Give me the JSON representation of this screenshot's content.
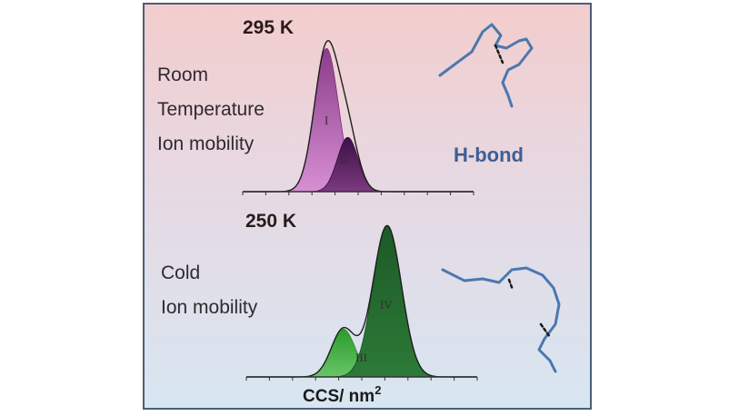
{
  "figure": {
    "panel_top_temperature": "295 K",
    "panel_top_description": [
      "Room",
      "Temperature",
      "Ion mobility"
    ],
    "panel_bottom_temperature": "250 K",
    "panel_bottom_description": [
      "Cold",
      "Ion mobility"
    ],
    "hbond_label": "H-bond",
    "x_axis_label": "CCS/ nm",
    "x_axis_label_superscript": "2",
    "colors": {
      "frame": "#4a5f78",
      "background_top": "#f2cfcf",
      "background_bottom": "#dbe7f1",
      "room_temp_peaks": [
        "#b063a8",
        "#5a1e62"
      ],
      "cold_peaks": [
        "#3aa03a",
        "#1f5d2a"
      ],
      "molecule": "#4a78b0",
      "hbond_text": "#3e5f93"
    }
  },
  "chart_data": [
    {
      "type": "area",
      "title": "295 K",
      "xlabel": "",
      "ylabel": "",
      "x_ticks": 10,
      "x": [
        0,
        0.02,
        0.04,
        0.06,
        0.08,
        0.1,
        0.12,
        0.14,
        0.16,
        0.18,
        0.2,
        0.22,
        0.24,
        0.26,
        0.28,
        0.3,
        0.32,
        0.34,
        0.36,
        0.38,
        0.4,
        0.42,
        0.44,
        0.46,
        0.48,
        0.5,
        0.52,
        0.54,
        0.56,
        0.58,
        0.6,
        0.62,
        0.64,
        0.66,
        0.68,
        0.7,
        0.72,
        0.74,
        0.76,
        0.78,
        0.8,
        0.82,
        0.84,
        0.86,
        0.88,
        0.9,
        0.92,
        0.94,
        0.96,
        0.98,
        1.0
      ],
      "series": [
        {
          "name": "I",
          "peak_x": 0.363,
          "width": 0.052,
          "height": 0.95
        },
        {
          "name": "II",
          "peak_x": 0.455,
          "width": 0.045,
          "height": 0.36
        },
        {
          "name": "",
          "role": "envelope"
        }
      ]
    },
    {
      "type": "area",
      "title": "250 K",
      "xlabel": "CCS/ nm2",
      "ylabel": "",
      "x_ticks": 10,
      "series": [
        {
          "name": "III",
          "peak_x": 0.42,
          "width": 0.052,
          "height": 0.31
        },
        {
          "name": "IV",
          "peak_x": 0.61,
          "width": 0.062,
          "height": 0.98
        },
        {
          "name": "",
          "role": "envelope"
        }
      ]
    }
  ]
}
